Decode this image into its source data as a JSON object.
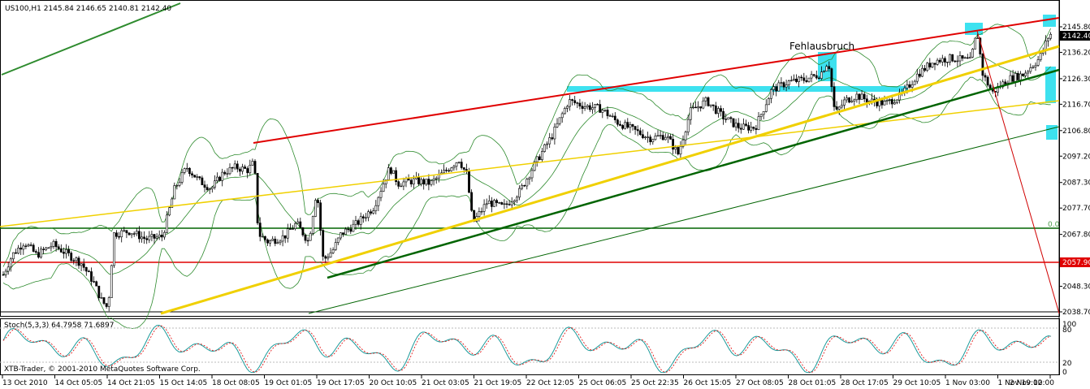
{
  "chart_data": {
    "type": "candlestick",
    "symbol_header": "US100,H1  2145.84 2146.65 2140.81 2142.40",
    "annotation": "Fehlausbruch",
    "watermark": "XTB-Trader, © 2001-2010 MetaQuotes Software Corp.",
    "current_price": "2142.40",
    "marked_price": "2057.90",
    "fib_label": "0.0",
    "y_ticks": [
      "2145.80",
      "2136.20",
      "2126.30",
      "2116.70",
      "2106.80",
      "2097.20",
      "2087.30",
      "2077.70",
      "2067.80",
      "2057.90",
      "2048.30",
      "2038.70"
    ],
    "x_ticks": [
      "13 Oct 2010",
      "14 Oct 05:05",
      "14 Oct 21:05",
      "15 Oct 14:05",
      "18 Oct 08:05",
      "19 Oct 01:05",
      "19 Oct 17:05",
      "20 Oct 10:05",
      "21 Oct 03:05",
      "21 Oct 19:05",
      "22 Oct 12:05",
      "25 Oct 06:05",
      "25 Oct 22:35",
      "26 Oct 15:05",
      "27 Oct 08:05",
      "28 Oct 01:05",
      "28 Oct 17:05",
      "29 Oct 10:05",
      "1 Nov 03:00",
      "1 Nov 19:00",
      "2 Nov 12:00"
    ],
    "ylim": [
      2038.7,
      2150.0
    ],
    "close_path": [
      [
        0,
        2050
      ],
      [
        15,
        2060
      ],
      [
        30,
        2065
      ],
      [
        45,
        2060
      ],
      [
        65,
        2064
      ],
      [
        85,
        2060
      ],
      [
        100,
        2057
      ],
      [
        115,
        2050
      ],
      [
        125,
        2043
      ],
      [
        133,
        2040
      ],
      [
        140,
        2068
      ],
      [
        160,
        2069
      ],
      [
        180,
        2066
      ],
      [
        200,
        2067
      ],
      [
        215,
        2085
      ],
      [
        230,
        2093
      ],
      [
        245,
        2088
      ],
      [
        260,
        2085
      ],
      [
        275,
        2091
      ],
      [
        290,
        2093
      ],
      [
        305,
        2092
      ],
      [
        313,
        2095
      ],
      [
        318,
        2068
      ],
      [
        330,
        2065
      ],
      [
        350,
        2067
      ],
      [
        365,
        2072
      ],
      [
        380,
        2065
      ],
      [
        390,
        2085
      ],
      [
        398,
        2058
      ],
      [
        410,
        2062
      ],
      [
        420,
        2068
      ],
      [
        440,
        2072
      ],
      [
        460,
        2078
      ],
      [
        480,
        2093
      ],
      [
        490,
        2087
      ],
      [
        510,
        2088
      ],
      [
        530,
        2087
      ],
      [
        550,
        2092
      ],
      [
        565,
        2096
      ],
      [
        575,
        2090
      ],
      [
        582,
        2072
      ],
      [
        600,
        2080
      ],
      [
        620,
        2078
      ],
      [
        640,
        2084
      ],
      [
        660,
        2095
      ],
      [
        680,
        2105
      ],
      [
        700,
        2118
      ],
      [
        720,
        2116
      ],
      [
        740,
        2115
      ],
      [
        760,
        2110
      ],
      [
        780,
        2107
      ],
      [
        800,
        2104
      ],
      [
        820,
        2105
      ],
      [
        835,
        2098
      ],
      [
        850,
        2114
      ],
      [
        870,
        2118
      ],
      [
        890,
        2112
      ],
      [
        910,
        2108
      ],
      [
        930,
        2108
      ],
      [
        950,
        2122
      ],
      [
        970,
        2125
      ],
      [
        990,
        2126
      ],
      [
        1010,
        2128
      ],
      [
        1020,
        2133
      ],
      [
        1028,
        2113
      ],
      [
        1040,
        2118
      ],
      [
        1055,
        2120
      ],
      [
        1070,
        2118
      ],
      [
        1090,
        2117
      ],
      [
        1110,
        2120
      ],
      [
        1130,
        2128
      ],
      [
        1150,
        2133
      ],
      [
        1170,
        2134
      ],
      [
        1195,
        2133
      ],
      [
        1203,
        2144
      ],
      [
        1210,
        2128
      ],
      [
        1222,
        2121
      ],
      [
        1240,
        2126
      ],
      [
        1260,
        2128
      ],
      [
        1280,
        2134
      ],
      [
        1292,
        2143
      ]
    ],
    "stoch_params": "Stoch(5,3,3) 64.7958 71.6897",
    "stoch_levels": [
      "100",
      "80",
      "20",
      "0"
    ]
  }
}
